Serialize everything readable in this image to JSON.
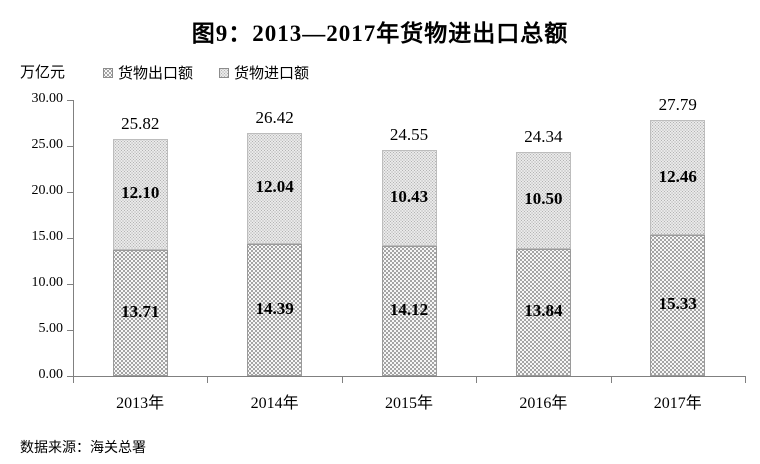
{
  "title": "图9：2013—2017年货物进出口总额",
  "unit_label": "万亿元",
  "legend": {
    "items": [
      {
        "label": "货物出口额",
        "pattern": "white-dots-on-gray"
      },
      {
        "label": "货物进口额",
        "pattern": "gray-dots-on-white"
      }
    ]
  },
  "source": "数据来源：海关总署",
  "chart_data": {
    "type": "bar",
    "stacked": true,
    "title": "图9：2013—2017年货物进出口总额",
    "ylabel": "万亿元",
    "xlabel": "",
    "ylim": [
      0,
      30
    ],
    "yticks": [
      0,
      5,
      10,
      15,
      20,
      25,
      30
    ],
    "ytick_format": "2-decimals",
    "grid": false,
    "legend_position": "top-left",
    "categories": [
      "2013年",
      "2014年",
      "2015年",
      "2016年",
      "2017年"
    ],
    "series": [
      {
        "name": "货物出口额",
        "stack_order": "bottom",
        "color": "#a4a4a4",
        "pattern": "white-dots-on-gray",
        "values": [
          13.71,
          14.39,
          14.12,
          13.84,
          15.33
        ]
      },
      {
        "name": "货物进口额",
        "stack_order": "top",
        "color": "#ffffff",
        "pattern": "gray-dots-on-white",
        "values": [
          12.1,
          12.04,
          10.43,
          10.5,
          12.46
        ]
      }
    ],
    "totals": [
      25.82,
      26.42,
      24.55,
      24.34,
      27.79
    ],
    "axis_color": "#808080",
    "text_color": "#000000"
  }
}
